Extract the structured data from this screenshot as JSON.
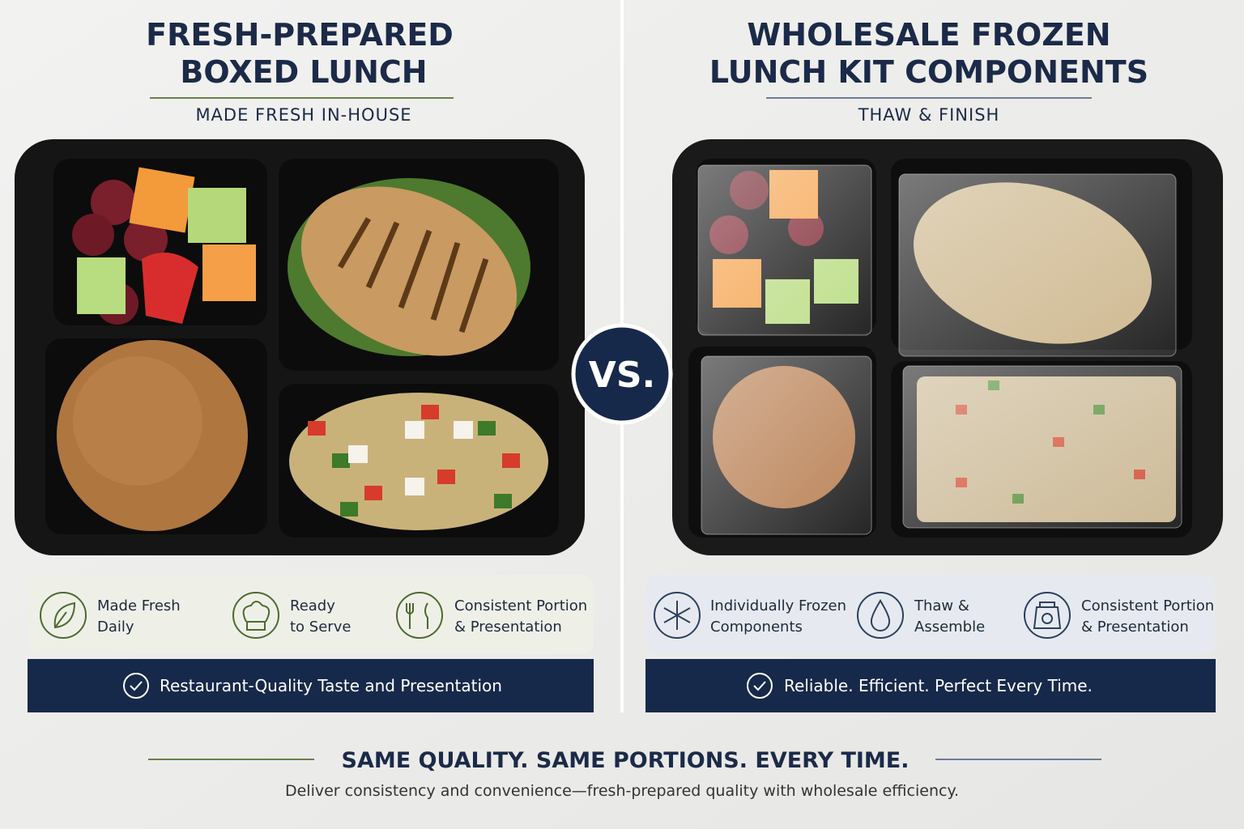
{
  "left": {
    "title_lines": [
      "FRESH-PREPARED",
      "BOXED LUNCH"
    ],
    "subtitle": "MADE FRESH IN-HOUSE",
    "features": [
      {
        "lines": [
          "Made Fresh",
          "Daily"
        ]
      },
      {
        "lines": [
          "Ready",
          "to Serve"
        ]
      },
      {
        "lines": [
          "Consistent Portion",
          "& Presentation"
        ]
      }
    ],
    "banner": "Restaurant-Quality Taste and Presentation"
  },
  "vs": "VS.",
  "right": {
    "title_lines": [
      "WHOLESALE FROZEN",
      "LUNCH KIT COMPONENTS"
    ],
    "subtitle": "THAW & FINISH",
    "features": [
      {
        "lines": [
          "Individually Frozen",
          "Components"
        ]
      },
      {
        "lines": [
          "Thaw &",
          "Assemble"
        ]
      },
      {
        "lines": [
          "Consistent Portion",
          "& Presentation"
        ]
      }
    ],
    "banner": "Reliable. Efficient. Perfect Every Time."
  },
  "footer": {
    "headline": "SAME QUALITY. SAME PORTIONS. EVERY TIME.",
    "text": "Deliver consistency and convenience—fresh-prepared quality with wholesale efficiency."
  }
}
